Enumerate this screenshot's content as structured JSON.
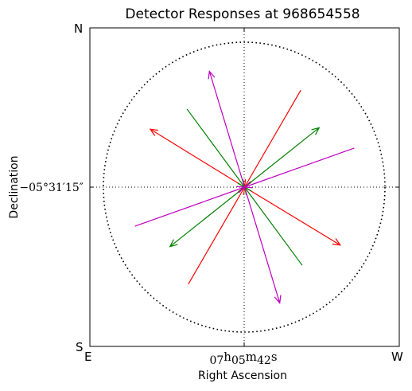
{
  "chart_data": {
    "type": "vector-field",
    "title": "Detector Responses at 968654558",
    "xlabel": "Right Ascension",
    "ylabel": "Declination",
    "x_tick_label": {
      "h": "07",
      "m": "05",
      "s": "42"
    },
    "y_tick_label": "−05°31′15″",
    "corners": {
      "top_left": "N",
      "bottom_left": "S",
      "left_bottom": "E",
      "right_bottom": "W"
    },
    "grid": true,
    "unit_circle": true,
    "xlim": [
      -1.1,
      1.1
    ],
    "ylim": [
      -1.1,
      1.1
    ],
    "series": [
      {
        "color": "#ff0000",
        "vectors": [
          {
            "from": [
              0.0,
              0.0
            ],
            "to": [
              -0.67,
              0.4
            ],
            "arrow": "end"
          },
          {
            "from": [
              0.0,
              0.0
            ],
            "to": [
              0.68,
              -0.4
            ],
            "arrow": "end"
          },
          {
            "from": [
              0.0,
              0.0
            ],
            "to": [
              0.4,
              0.67
            ],
            "arrow": "start"
          },
          {
            "from": [
              0.0,
              0.0
            ],
            "to": [
              -0.4,
              -0.67
            ],
            "arrow": "start"
          }
        ]
      },
      {
        "color": "#008000",
        "vectors": [
          {
            "from": [
              0.0,
              0.0
            ],
            "to": [
              0.53,
              0.41
            ],
            "arrow": "end"
          },
          {
            "from": [
              0.0,
              0.0
            ],
            "to": [
              -0.53,
              -0.41
            ],
            "arrow": "end"
          },
          {
            "from": [
              0.0,
              0.0
            ],
            "to": [
              -0.41,
              0.54
            ],
            "arrow": "start"
          },
          {
            "from": [
              0.0,
              0.0
            ],
            "to": [
              0.41,
              -0.54
            ],
            "arrow": "start"
          }
        ]
      },
      {
        "color": "#c000c0",
        "vectors": [
          {
            "from": [
              0.0,
              0.0
            ],
            "to": [
              -0.25,
              0.8
            ],
            "arrow": "end"
          },
          {
            "from": [
              0.0,
              0.0
            ],
            "to": [
              0.25,
              -0.8
            ],
            "arrow": "end"
          },
          {
            "from": [
              0.0,
              0.0
            ],
            "to": [
              0.78,
              0.27
            ],
            "arrow": "start"
          },
          {
            "from": [
              0.0,
              0.0
            ],
            "to": [
              -0.78,
              -0.27
            ],
            "arrow": "start"
          }
        ]
      }
    ]
  }
}
